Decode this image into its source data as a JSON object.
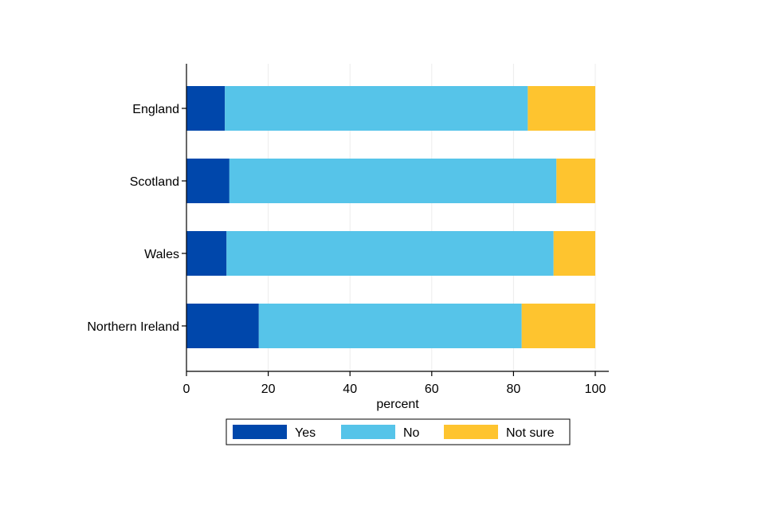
{
  "chart_data": {
    "type": "bar",
    "orientation": "horizontal",
    "stacked": true,
    "categories": [
      "England",
      "Scotland",
      "Wales",
      "Northern Ireland"
    ],
    "series": [
      {
        "name": "Yes",
        "values": [
          9.4,
          10.5,
          9.8,
          17.7
        ],
        "color": "#0047ab"
      },
      {
        "name": "No",
        "values": [
          74.1,
          80.0,
          80.0,
          64.3
        ],
        "color": "#56c4e9"
      },
      {
        "name": "Not sure",
        "values": [
          16.5,
          9.5,
          10.2,
          18.0
        ],
        "color": "#fec42f"
      }
    ],
    "xlabel": "percent",
    "xlim": [
      0,
      100
    ],
    "xticks": [
      "0",
      "20",
      "40",
      "60",
      "80",
      "100"
    ],
    "grid": "vertical",
    "legend": "bottom"
  }
}
